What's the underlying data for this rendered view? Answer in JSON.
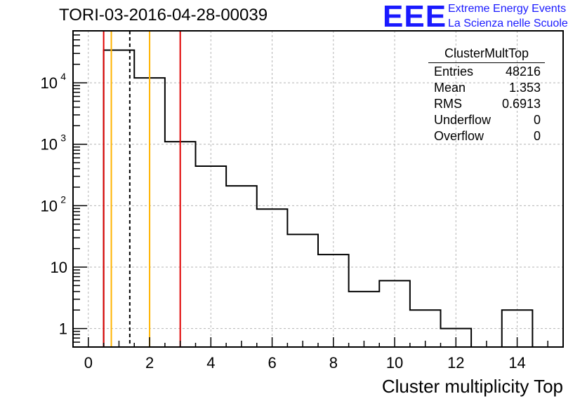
{
  "page": {
    "title": "TORI-03-2016-04-28-00039"
  },
  "logo": {
    "mark": "EEE",
    "line1": "Extreme Energy Events",
    "line2": "La Scienza nelle Scuole",
    "color": "#1a1aff"
  },
  "stats": {
    "title": "ClusterMultTop",
    "rows": [
      {
        "label": "Entries",
        "value": "48216"
      },
      {
        "label": "Mean",
        "value": "1.353"
      },
      {
        "label": "RMS",
        "value": "0.6913"
      },
      {
        "label": "Underflow",
        "value": "0"
      },
      {
        "label": "Overflow",
        "value": "0"
      }
    ]
  },
  "chart_data": {
    "type": "histogram",
    "title": "TORI-03-2016-04-28-00039",
    "xlabel": "Cluster multiplicity Top",
    "ylabel": "",
    "xlim": [
      -0.5,
      15.5
    ],
    "ylim": [
      0.5,
      70000
    ],
    "yscale": "log",
    "grid": true,
    "bin_edges": [
      -0.5,
      0.5,
      1.5,
      2.5,
      3.5,
      4.5,
      5.5,
      6.5,
      7.5,
      8.5,
      9.5,
      10.5,
      11.5,
      12.5,
      13.5,
      14.5,
      15.5
    ],
    "counts": [
      0,
      34000,
      12000,
      1100,
      440,
      210,
      88,
      34,
      16,
      4,
      6,
      2,
      1,
      0,
      2,
      0
    ],
    "x_ticks": [
      "0",
      "2",
      "4",
      "6",
      "8",
      "10",
      "12",
      "14"
    ],
    "y_ticks": [
      "1",
      "10",
      "10",
      "10",
      "10"
    ],
    "y_tick_exponents": [
      "",
      "",
      "2",
      "3",
      "4"
    ],
    "vertical_lines": [
      {
        "x": 0.5,
        "color": "#e00000",
        "style": "solid"
      },
      {
        "x": 0.75,
        "color": "#ffb400",
        "style": "solid"
      },
      {
        "x": 1.353,
        "color": "#000000",
        "style": "dashed"
      },
      {
        "x": 2.0,
        "color": "#ffb400",
        "style": "solid"
      },
      {
        "x": 3.0,
        "color": "#e00000",
        "style": "solid"
      }
    ]
  }
}
